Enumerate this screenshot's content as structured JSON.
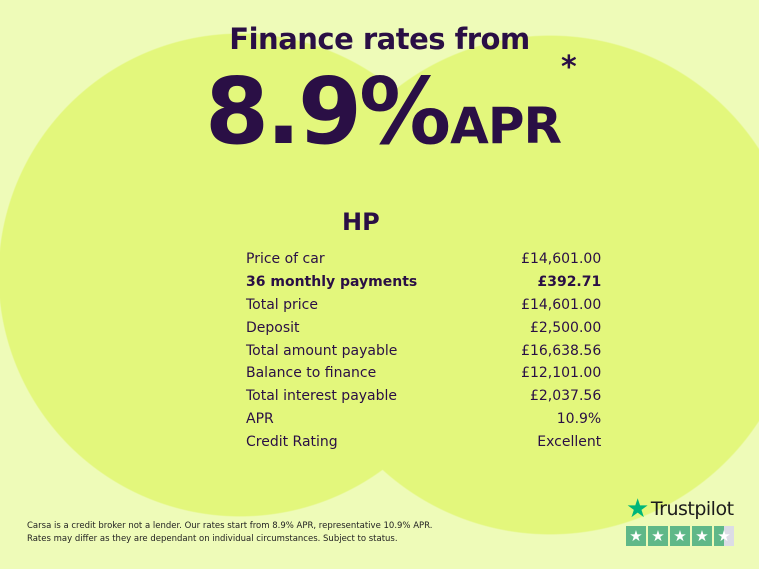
{
  "headline": "Finance rates from",
  "rate": {
    "value": "8.9%",
    "suffix": "APR",
    "mark": "*"
  },
  "section_title": "HP",
  "rows": [
    {
      "label": "Price of car",
      "value": "£14,601.00",
      "bold": false
    },
    {
      "label": "36 monthly payments",
      "value": "£392.71",
      "bold": true
    },
    {
      "label": "Total price",
      "value": "£14,601.00",
      "bold": false
    },
    {
      "label": "Deposit",
      "value": "£2,500.00",
      "bold": false
    },
    {
      "label": "Total amount payable",
      "value": "£16,638.56",
      "bold": false
    },
    {
      "label": "Balance to finance",
      "value": "£12,101.00",
      "bold": false
    },
    {
      "label": "Total interest payable",
      "value": "£2,037.56",
      "bold": false
    },
    {
      "label": "APR",
      "value": "10.9%",
      "bold": false
    },
    {
      "label": "Credit Rating",
      "value": "Excellent",
      "bold": false
    }
  ],
  "disclaimer": [
    "Carsa is a credit broker not a lender. Our rates start from 8.9% APR, representative 10.9% APR.",
    "Rates may differ as they are dependant on individual circumstances. Subject to status."
  ],
  "trustpilot": {
    "name": "Trustpilot",
    "rating_stars": 4.5,
    "max_stars": 5,
    "icon": "star-icon",
    "color": "#00b67a"
  },
  "colors": {
    "text": "#2a0f45",
    "background": "#eefbb8",
    "circle": "#e3f77c"
  }
}
